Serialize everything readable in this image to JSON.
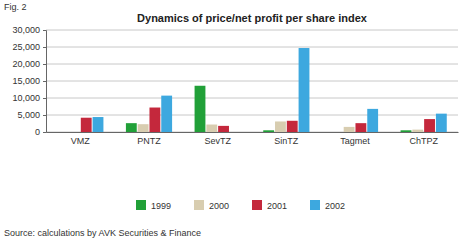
{
  "chart_data": {
    "type": "bar",
    "figure_label": "Fig. 2",
    "title": "Dynamics of price/net profit per share index",
    "source": "Source: calculations by AVK Securities & Finance",
    "categories": [
      "VMZ",
      "PNTZ",
      "SevTZ",
      "SinTZ",
      "Tagmet",
      "ChTPZ"
    ],
    "series": [
      {
        "name": "1999",
        "color": "#21a038",
        "values": [
          null,
          2600,
          13600,
          500,
          null,
          500
        ]
      },
      {
        "name": "2000",
        "color": "#d8cdb0",
        "values": [
          null,
          2300,
          2200,
          3100,
          1500,
          700
        ]
      },
      {
        "name": "2001",
        "color": "#c4283c",
        "values": [
          4200,
          7200,
          1800,
          3300,
          2600,
          3800
        ]
      },
      {
        "name": "2002",
        "color": "#3da8df",
        "values": [
          4400,
          10700,
          null,
          24700,
          6800,
          5400
        ]
      }
    ],
    "ylim": [
      0,
      30000
    ],
    "yticks": [
      0,
      {
        "value": 5000,
        "label": "5,000"
      },
      {
        "value": 10000,
        "label": "10,000"
      },
      {
        "value": 15000,
        "label": "15,000"
      },
      {
        "value": 20000,
        "label": "20,000"
      },
      {
        "value": 25000,
        "label": "25,000"
      },
      {
        "value": 30000,
        "label": "30,000"
      }
    ],
    "grid": true,
    "legend": "bottom"
  }
}
